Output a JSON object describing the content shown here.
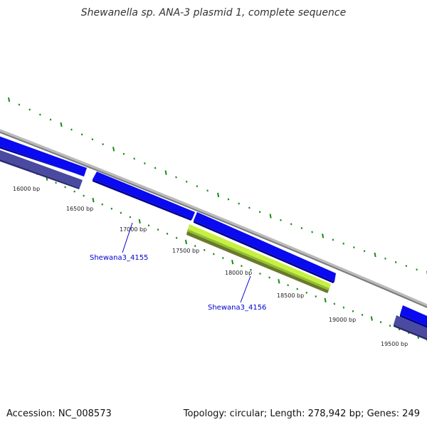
{
  "title": "Shewanella sp. ANA-3 plasmid 1, complete sequence",
  "footer": {
    "accession": "Accession: NC_008573",
    "summary": "Topology: circular; Length: 278,942 bp; Genes: 249"
  },
  "ticks": [
    {
      "bp": 16000,
      "label": "16000 bp"
    },
    {
      "bp": 16500,
      "label": "16500 bp"
    },
    {
      "bp": 17000,
      "label": "17000 bp"
    },
    {
      "bp": 17500,
      "label": "17500 bp"
    },
    {
      "bp": 18000,
      "label": "18000 bp"
    },
    {
      "bp": 18500,
      "label": "18500 bp"
    },
    {
      "bp": 19000,
      "label": "19000 bp"
    },
    {
      "bp": 19500,
      "label": "19500 bp"
    }
  ],
  "gene_labels": [
    {
      "name": "Shewana3_4155"
    },
    {
      "name": "Shewana3_4156"
    }
  ],
  "colors": {
    "backbone": "#8a8a8a",
    "forward_gene": "#0a0af0",
    "reverse_gene": "#4a4aa0",
    "highlight_gene": "#a8e040",
    "highlight_gene_dark": "#708a30",
    "tick": "#1a8a1a",
    "label": "#0000cc"
  }
}
